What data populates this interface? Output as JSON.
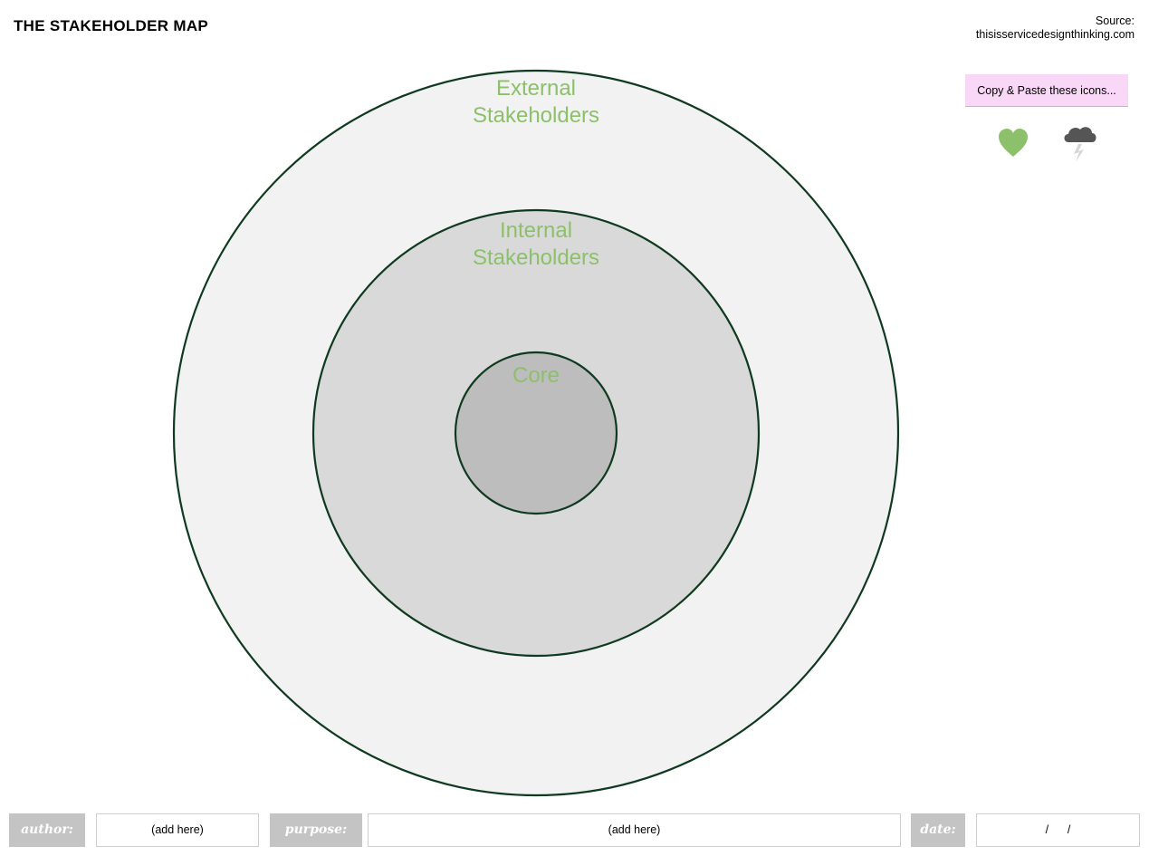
{
  "header": {
    "title": "THE STAKEHOLDER MAP",
    "source_label": "Source:",
    "source_url": "thisisservicedesignthinking.com"
  },
  "icon_panel": {
    "note": "Copy & Paste these icons...",
    "icons": [
      "heart-icon",
      "storm-cloud-icon"
    ]
  },
  "diagram": {
    "rings": [
      {
        "name": "external",
        "label_lines": [
          "External",
          "Stakeholders"
        ],
        "fill": "#f2f2f2"
      },
      {
        "name": "internal",
        "label_lines": [
          "Internal",
          "Stakeholders"
        ],
        "fill": "#d9d9d9"
      },
      {
        "name": "core",
        "label_lines": [
          "Core"
        ],
        "fill": "#bdbdbd"
      }
    ],
    "stroke_color": "#0f3a1f",
    "label_color": "#8cc06a"
  },
  "footer": {
    "author_label": "author:",
    "author_value": "(add here)",
    "purpose_label": "purpose:",
    "purpose_value": "(add here)",
    "date_label": "date:",
    "date_value": "/      /"
  }
}
